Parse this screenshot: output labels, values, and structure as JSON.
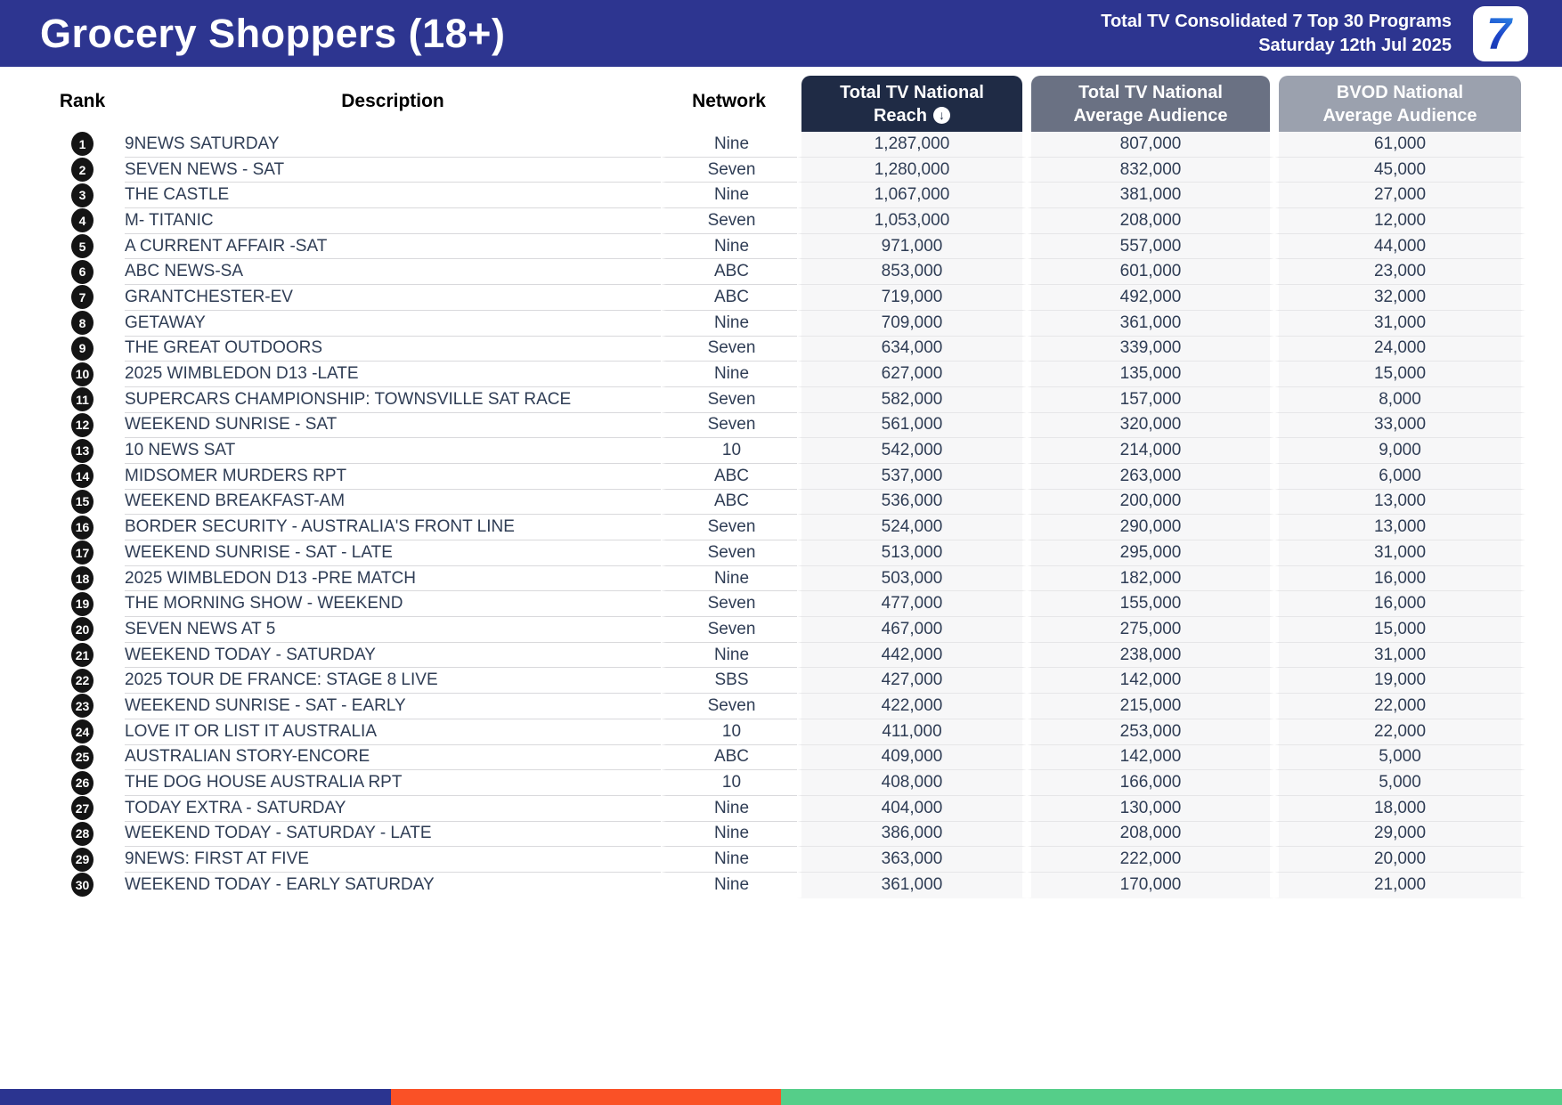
{
  "header": {
    "title": "Grocery Shoppers (18+)",
    "subtitle_line1": "Total TV Consolidated 7 Top 30 Programs",
    "subtitle_line2": "Saturday 12th Jul 2025",
    "logo_text": "7"
  },
  "table": {
    "columns": {
      "rank": "Rank",
      "description": "Description",
      "network": "Network",
      "reach": {
        "line1": "Total TV National",
        "line2": "Reach",
        "sort_icon": "↓"
      },
      "average_audience": {
        "line1": "Total TV National",
        "line2": "Average Audience"
      },
      "bvod": {
        "line1": "BVOD National",
        "line2": "Average Audience"
      }
    },
    "rows": [
      {
        "rank": "1",
        "description": "9NEWS SATURDAY",
        "network": "Nine",
        "reach": "1,287,000",
        "average_audience": "807,000",
        "bvod_average_audience": "61,000"
      },
      {
        "rank": "2",
        "description": "SEVEN NEWS - SAT",
        "network": "Seven",
        "reach": "1,280,000",
        "average_audience": "832,000",
        "bvod_average_audience": "45,000"
      },
      {
        "rank": "3",
        "description": "THE CASTLE",
        "network": "Nine",
        "reach": "1,067,000",
        "average_audience": "381,000",
        "bvod_average_audience": "27,000"
      },
      {
        "rank": "4",
        "description": "M- TITANIC",
        "network": "Seven",
        "reach": "1,053,000",
        "average_audience": "208,000",
        "bvod_average_audience": "12,000"
      },
      {
        "rank": "5",
        "description": "A CURRENT AFFAIR -SAT",
        "network": "Nine",
        "reach": "971,000",
        "average_audience": "557,000",
        "bvod_average_audience": "44,000"
      },
      {
        "rank": "6",
        "description": "ABC NEWS-SA",
        "network": "ABC",
        "reach": "853,000",
        "average_audience": "601,000",
        "bvod_average_audience": "23,000"
      },
      {
        "rank": "7",
        "description": "GRANTCHESTER-EV",
        "network": "ABC",
        "reach": "719,000",
        "average_audience": "492,000",
        "bvod_average_audience": "32,000"
      },
      {
        "rank": "8",
        "description": "GETAWAY",
        "network": "Nine",
        "reach": "709,000",
        "average_audience": "361,000",
        "bvod_average_audience": "31,000"
      },
      {
        "rank": "9",
        "description": "THE GREAT OUTDOORS",
        "network": "Seven",
        "reach": "634,000",
        "average_audience": "339,000",
        "bvod_average_audience": "24,000"
      },
      {
        "rank": "10",
        "description": "2025 WIMBLEDON D13 -LATE",
        "network": "Nine",
        "reach": "627,000",
        "average_audience": "135,000",
        "bvod_average_audience": "15,000"
      },
      {
        "rank": "11",
        "description": "SUPERCARS CHAMPIONSHIP: TOWNSVILLE SAT RACE",
        "network": "Seven",
        "reach": "582,000",
        "average_audience": "157,000",
        "bvod_average_audience": "8,000"
      },
      {
        "rank": "12",
        "description": "WEEKEND SUNRISE - SAT",
        "network": "Seven",
        "reach": "561,000",
        "average_audience": "320,000",
        "bvod_average_audience": "33,000"
      },
      {
        "rank": "13",
        "description": "10 NEWS SAT",
        "network": "10",
        "reach": "542,000",
        "average_audience": "214,000",
        "bvod_average_audience": "9,000"
      },
      {
        "rank": "14",
        "description": "MIDSOMER MURDERS RPT",
        "network": "ABC",
        "reach": "537,000",
        "average_audience": "263,000",
        "bvod_average_audience": "6,000"
      },
      {
        "rank": "15",
        "description": "WEEKEND BREAKFAST-AM",
        "network": "ABC",
        "reach": "536,000",
        "average_audience": "200,000",
        "bvod_average_audience": "13,000"
      },
      {
        "rank": "16",
        "description": "BORDER SECURITY - AUSTRALIA'S FRONT LINE",
        "network": "Seven",
        "reach": "524,000",
        "average_audience": "290,000",
        "bvod_average_audience": "13,000"
      },
      {
        "rank": "17",
        "description": "WEEKEND SUNRISE - SAT - LATE",
        "network": "Seven",
        "reach": "513,000",
        "average_audience": "295,000",
        "bvod_average_audience": "31,000"
      },
      {
        "rank": "18",
        "description": "2025 WIMBLEDON D13 -PRE MATCH",
        "network": "Nine",
        "reach": "503,000",
        "average_audience": "182,000",
        "bvod_average_audience": "16,000"
      },
      {
        "rank": "19",
        "description": "THE MORNING SHOW - WEEKEND",
        "network": "Seven",
        "reach": "477,000",
        "average_audience": "155,000",
        "bvod_average_audience": "16,000"
      },
      {
        "rank": "20",
        "description": "SEVEN NEWS AT 5",
        "network": "Seven",
        "reach": "467,000",
        "average_audience": "275,000",
        "bvod_average_audience": "15,000"
      },
      {
        "rank": "21",
        "description": "WEEKEND TODAY - SATURDAY",
        "network": "Nine",
        "reach": "442,000",
        "average_audience": "238,000",
        "bvod_average_audience": "31,000"
      },
      {
        "rank": "22",
        "description": "2025 TOUR DE FRANCE: STAGE 8 LIVE",
        "network": "SBS",
        "reach": "427,000",
        "average_audience": "142,000",
        "bvod_average_audience": "19,000"
      },
      {
        "rank": "23",
        "description": "WEEKEND SUNRISE - SAT - EARLY",
        "network": "Seven",
        "reach": "422,000",
        "average_audience": "215,000",
        "bvod_average_audience": "22,000"
      },
      {
        "rank": "24",
        "description": "LOVE IT OR LIST IT AUSTRALIA",
        "network": "10",
        "reach": "411,000",
        "average_audience": "253,000",
        "bvod_average_audience": "22,000"
      },
      {
        "rank": "25",
        "description": "AUSTRALIAN STORY-ENCORE",
        "network": "ABC",
        "reach": "409,000",
        "average_audience": "142,000",
        "bvod_average_audience": "5,000"
      },
      {
        "rank": "26",
        "description": "THE DOG HOUSE AUSTRALIA RPT",
        "network": "10",
        "reach": "408,000",
        "average_audience": "166,000",
        "bvod_average_audience": "5,000"
      },
      {
        "rank": "27",
        "description": "TODAY EXTRA - SATURDAY",
        "network": "Nine",
        "reach": "404,000",
        "average_audience": "130,000",
        "bvod_average_audience": "18,000"
      },
      {
        "rank": "28",
        "description": "WEEKEND TODAY - SATURDAY - LATE",
        "network": "Nine",
        "reach": "386,000",
        "average_audience": "208,000",
        "bvod_average_audience": "29,000"
      },
      {
        "rank": "29",
        "description": "9NEWS: FIRST AT FIVE",
        "network": "Nine",
        "reach": "363,000",
        "average_audience": "222,000",
        "bvod_average_audience": "20,000"
      },
      {
        "rank": "30",
        "description": "WEEKEND TODAY - EARLY SATURDAY",
        "network": "Nine",
        "reach": "361,000",
        "average_audience": "170,000",
        "bvod_average_audience": "21,000"
      }
    ]
  },
  "colors": {
    "header_background": "#2D3590",
    "reach_header_background": "#1F2B45",
    "average_header_background": "#6A7183",
    "bvod_header_background": "#9BA1AE",
    "row_number_background": "#141414",
    "body_text": "#2F3D55",
    "footer_blue": "#2B3490",
    "footer_orange": "#FA5126",
    "footer_green": "#55CE89"
  },
  "footer": {
    "segments": [
      {
        "name": "blue",
        "color": "#2B3490",
        "width_pct": 25
      },
      {
        "name": "orange",
        "color": "#FA5126",
        "width_pct": 25
      },
      {
        "name": "green",
        "color": "#55CE89",
        "width_pct": 50
      }
    ]
  }
}
